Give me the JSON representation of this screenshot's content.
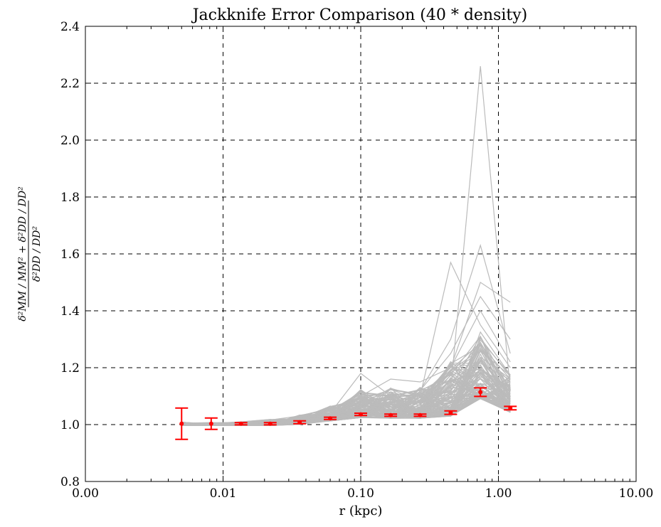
{
  "chart_data": {
    "type": "line",
    "title": "Jackknife Error Comparison (40 * density)",
    "xlabel": "r (kpc)",
    "ylabel": {
      "num_term1": "δ²MM / MM²",
      "num_term2": "δ²DD / DD²",
      "den": "δ²DD / DD²"
    },
    "x_scale": "log",
    "xlim": [
      0.001,
      10.0
    ],
    "ylim": [
      0.8,
      2.4
    ],
    "x_tick_labels": [
      "0.00",
      "0.01",
      "0.10",
      "1.00",
      "10.00"
    ],
    "y_tick_labels": [
      "0.8",
      "1.0",
      "1.2",
      "1.4",
      "1.6",
      "1.8",
      "2.0",
      "2.2",
      "2.4"
    ],
    "grid": true,
    "gray_series_color": "#bbbbbb",
    "mean_color": "#ff0000",
    "r": [
      0.005,
      0.0082,
      0.0135,
      0.022,
      0.036,
      0.06,
      0.1,
      0.165,
      0.27,
      0.45,
      0.74,
      1.22
    ],
    "mean": [
      1.003,
      1.003,
      1.003,
      1.003,
      1.008,
      1.022,
      1.036,
      1.033,
      1.033,
      1.042,
      1.114,
      1.058
    ],
    "err": [
      0.055,
      0.02,
      0.004,
      0.004,
      0.005,
      0.004,
      0.004,
      0.004,
      0.004,
      0.006,
      0.015,
      0.006
    ],
    "notable_gray_series": [
      {
        "values": [
          1.0,
          1.0,
          1.0,
          1.0,
          1.01,
          1.03,
          1.06,
          1.07,
          1.08,
          1.12,
          2.26,
          1.12
        ]
      },
      {
        "values": [
          1.0,
          1.0,
          1.0,
          1.0,
          1.01,
          1.04,
          1.08,
          1.1,
          1.12,
          1.3,
          1.63,
          1.25
        ]
      },
      {
        "values": [
          1.0,
          1.0,
          1.0,
          1.0,
          1.01,
          1.03,
          1.06,
          1.08,
          1.1,
          1.57,
          1.35,
          1.2
        ]
      },
      {
        "values": [
          1.0,
          1.0,
          1.0,
          1.0,
          1.01,
          1.03,
          1.06,
          1.08,
          1.1,
          1.2,
          1.5,
          1.43
        ]
      },
      {
        "values": [
          1.0,
          1.0,
          1.0,
          1.0,
          1.01,
          1.04,
          1.18,
          1.1,
          1.12,
          1.25,
          1.45,
          1.3
        ]
      },
      {
        "values": [
          1.0,
          1.0,
          1.0,
          1.0,
          1.02,
          1.05,
          1.1,
          1.16,
          1.15,
          1.2,
          1.4,
          1.22
        ]
      }
    ],
    "gray_series_count": 120
  }
}
